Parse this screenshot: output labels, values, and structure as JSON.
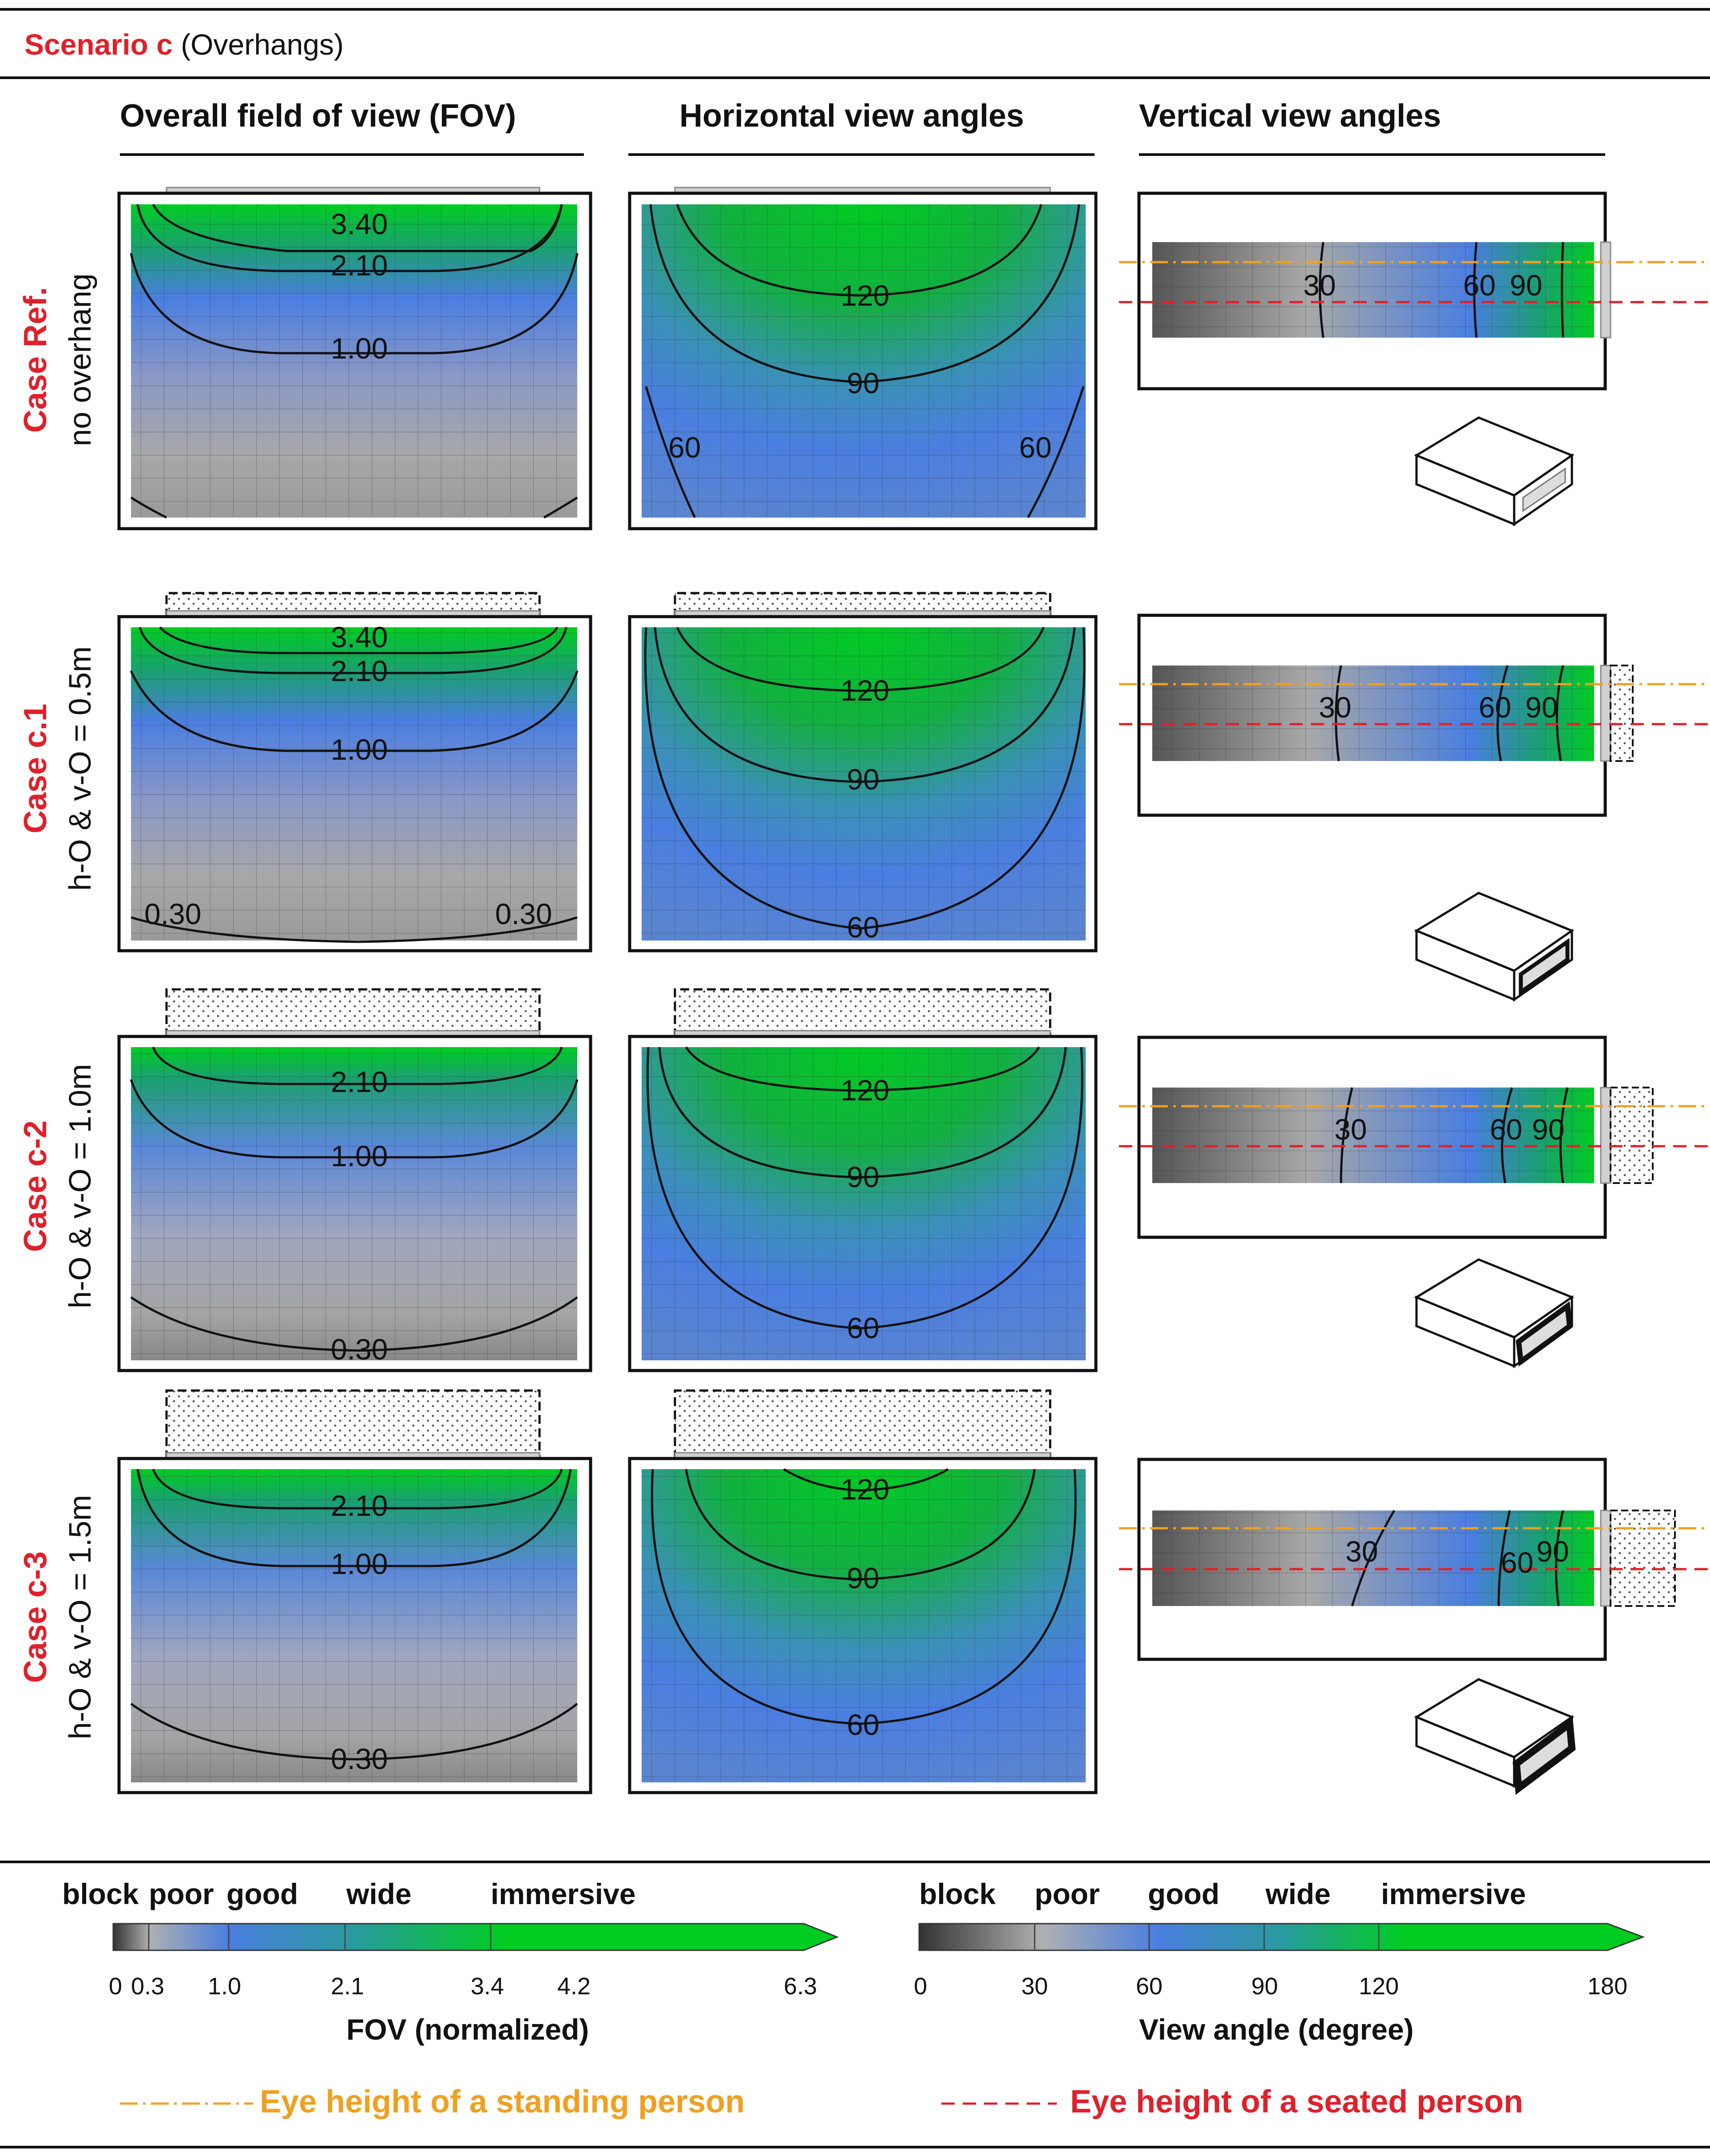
{
  "scenario": {
    "label": "Scenario c",
    "sub": "(Overhangs)"
  },
  "columns": [
    "Overall field of view (FOV)",
    "Horizontal view angles",
    "Vertical view angles"
  ],
  "rows": [
    {
      "case": "Case Ref.",
      "param": "no overhang",
      "fov_labels": [
        "3.40",
        "2.10",
        "1.00"
      ],
      "h_labels": [
        "120",
        "90",
        "60",
        "60"
      ],
      "v_labels": [
        "30",
        "60",
        "90"
      ]
    },
    {
      "case": "Case c.1",
      "param": "h-O & v-O = 0.5m",
      "fov_labels": [
        "3.40",
        "2.10",
        "1.00",
        "0.30",
        "0.30"
      ],
      "h_labels": [
        "120",
        "90",
        "60"
      ],
      "v_labels": [
        "30",
        "60",
        "90"
      ]
    },
    {
      "case": "Case c-2",
      "param": "h-O & v-O = 1.0m",
      "fov_labels": [
        "2.10",
        "1.00",
        "0.30"
      ],
      "h_labels": [
        "120",
        "90",
        "60"
      ],
      "v_labels": [
        "30",
        "60",
        "90"
      ]
    },
    {
      "case": "Case c-3",
      "param": "h-O & v-O = 1.5m",
      "fov_labels": [
        "2.10",
        "1.00",
        "0.30"
      ],
      "h_labels": [
        "120",
        "90",
        "60"
      ],
      "v_labels": [
        "30",
        "60",
        "90"
      ]
    }
  ],
  "legend_fov": {
    "categories": [
      "block",
      "poor",
      "good",
      "wide",
      "immersive"
    ],
    "ticks": [
      "0",
      "0.3",
      "1.0",
      "2.1",
      "3.4",
      "4.2",
      "6.3"
    ],
    "title": "FOV (normalized)"
  },
  "legend_angle": {
    "categories": [
      "block",
      "poor",
      "good",
      "wide",
      "immersive"
    ],
    "ticks": [
      "0",
      "30",
      "60",
      "90",
      "120",
      "180"
    ],
    "title": "View angle (degree)"
  },
  "eye_standing": "Eye height of a standing person",
  "eye_seated": "Eye height of a seated person",
  "colors": {
    "red": "#e0202a",
    "orange": "#f0a020",
    "green": "#00cc00",
    "blue": "#4a7ee0",
    "gray": "#a8a8a8"
  }
}
